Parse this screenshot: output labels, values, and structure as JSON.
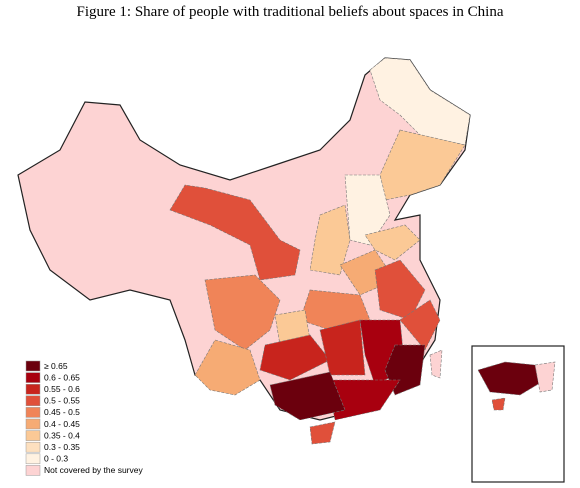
{
  "title": "Figure 1: Share of people with traditional beliefs about spaces in China",
  "legend": [
    {
      "label": "≥ 0.65",
      "color": "#6b000d"
    },
    {
      "label": "0.6 - 0.65",
      "color": "#a8000f"
    },
    {
      "label": "0.55 - 0.6",
      "color": "#c8241d"
    },
    {
      "label": "0.5 - 0.55",
      "color": "#e0503a"
    },
    {
      "label": "0.45 - 0.5",
      "color": "#f08458"
    },
    {
      "label": "0.4 - 0.45",
      "color": "#f6ab74"
    },
    {
      "label": "0.35 - 0.4",
      "color": "#fbc996"
    },
    {
      "label": "0.3 - 0.35",
      "color": "#fde0bf"
    },
    {
      "label": "0 - 0.3",
      "color": "#fff2e2"
    },
    {
      "label": "Not covered by the survey",
      "color": "#fdd3d3"
    }
  ]
}
